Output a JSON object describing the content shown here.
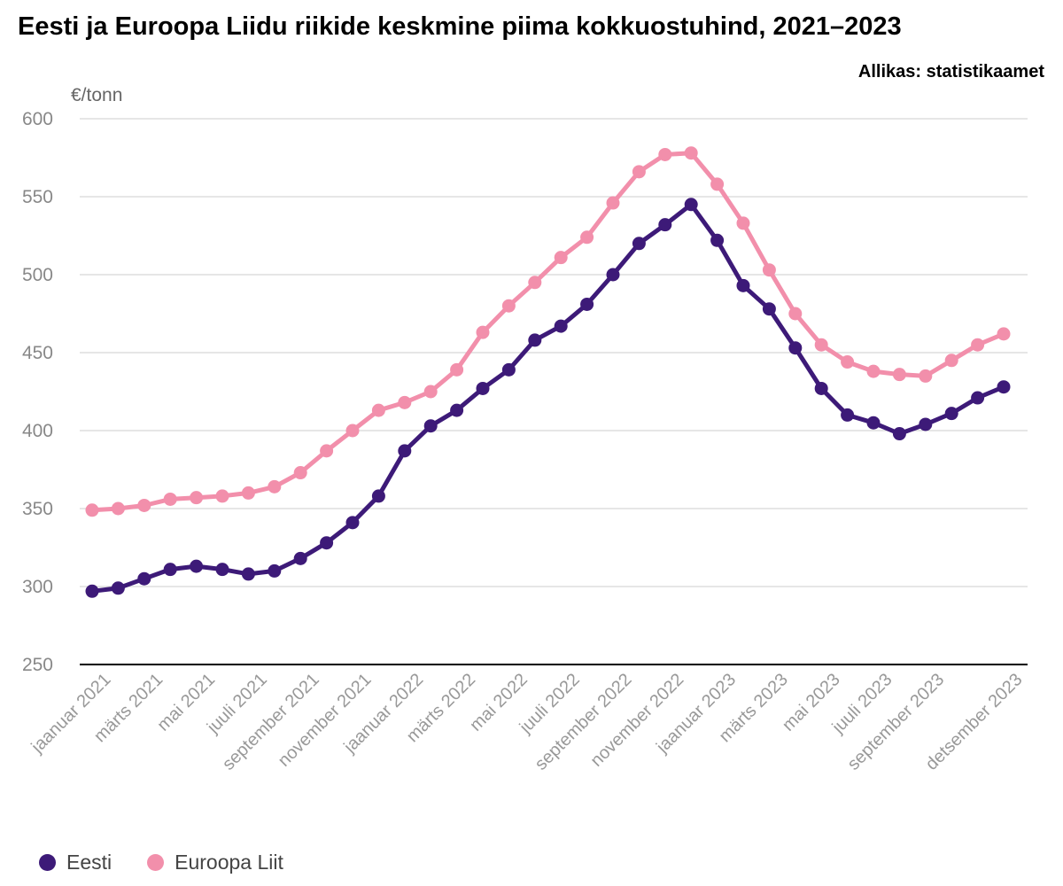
{
  "chart_data": {
    "type": "line",
    "title": "Eesti ja Euroopa Liidu riikide keskmine piima kokkuostuhind, 2021–2023",
    "source": "Allikas: statistikaamet",
    "ylabel": "€/tonn",
    "xlabel": "",
    "ylim": [
      250,
      600
    ],
    "yticks": [
      250,
      300,
      350,
      400,
      450,
      500,
      550,
      600
    ],
    "grid": true,
    "legend_position": "bottom-left",
    "x": [
      "jaanuar 2021",
      "veebruar 2021",
      "märts 2021",
      "aprill 2021",
      "mai 2021",
      "juuni 2021",
      "juuli 2021",
      "august 2021",
      "september 2021",
      "oktoober 2021",
      "november 2021",
      "detsember 2021",
      "jaanuar 2022",
      "veebruar 2022",
      "märts 2022",
      "aprill 2022",
      "mai 2022",
      "juuni 2022",
      "juuli 2022",
      "august 2022",
      "september 2022",
      "oktoober 2022",
      "november 2022",
      "detsember 2022",
      "jaanuar 2023",
      "veebruar 2023",
      "märts 2023",
      "aprill 2023",
      "mai 2023",
      "juuni 2023",
      "juuli 2023",
      "august 2023",
      "september 2023",
      "oktoober 2023",
      "november 2023",
      "detsember 2023"
    ],
    "tick_labels": [
      "jaanuar 2021",
      "märts 2021",
      "mai 2021",
      "juuli 2021",
      "september 2021",
      "november 2021",
      "jaanuar 2022",
      "märts 2022",
      "mai 2022",
      "juuli 2022",
      "september 2022",
      "november 2022",
      "jaanuar 2023",
      "märts 2023",
      "mai 2023",
      "juuli 2023",
      "september 2023",
      "detsember 2023"
    ],
    "series": [
      {
        "name": "Eesti",
        "color": "#3d1a78",
        "values": [
          297,
          299,
          305,
          311,
          313,
          311,
          308,
          310,
          318,
          328,
          341,
          358,
          387,
          403,
          413,
          427,
          439,
          458,
          467,
          481,
          500,
          520,
          532,
          545,
          522,
          493,
          478,
          453,
          427,
          410,
          405,
          398,
          404,
          411,
          421,
          428
        ]
      },
      {
        "name": "Euroopa Liit",
        "color": "#f28fab",
        "values": [
          349,
          350,
          352,
          356,
          357,
          358,
          360,
          364,
          373,
          387,
          400,
          413,
          418,
          425,
          439,
          463,
          480,
          495,
          511,
          524,
          546,
          566,
          577,
          578,
          558,
          533,
          503,
          475,
          455,
          444,
          438,
          436,
          435,
          445,
          455,
          462
        ]
      }
    ]
  }
}
